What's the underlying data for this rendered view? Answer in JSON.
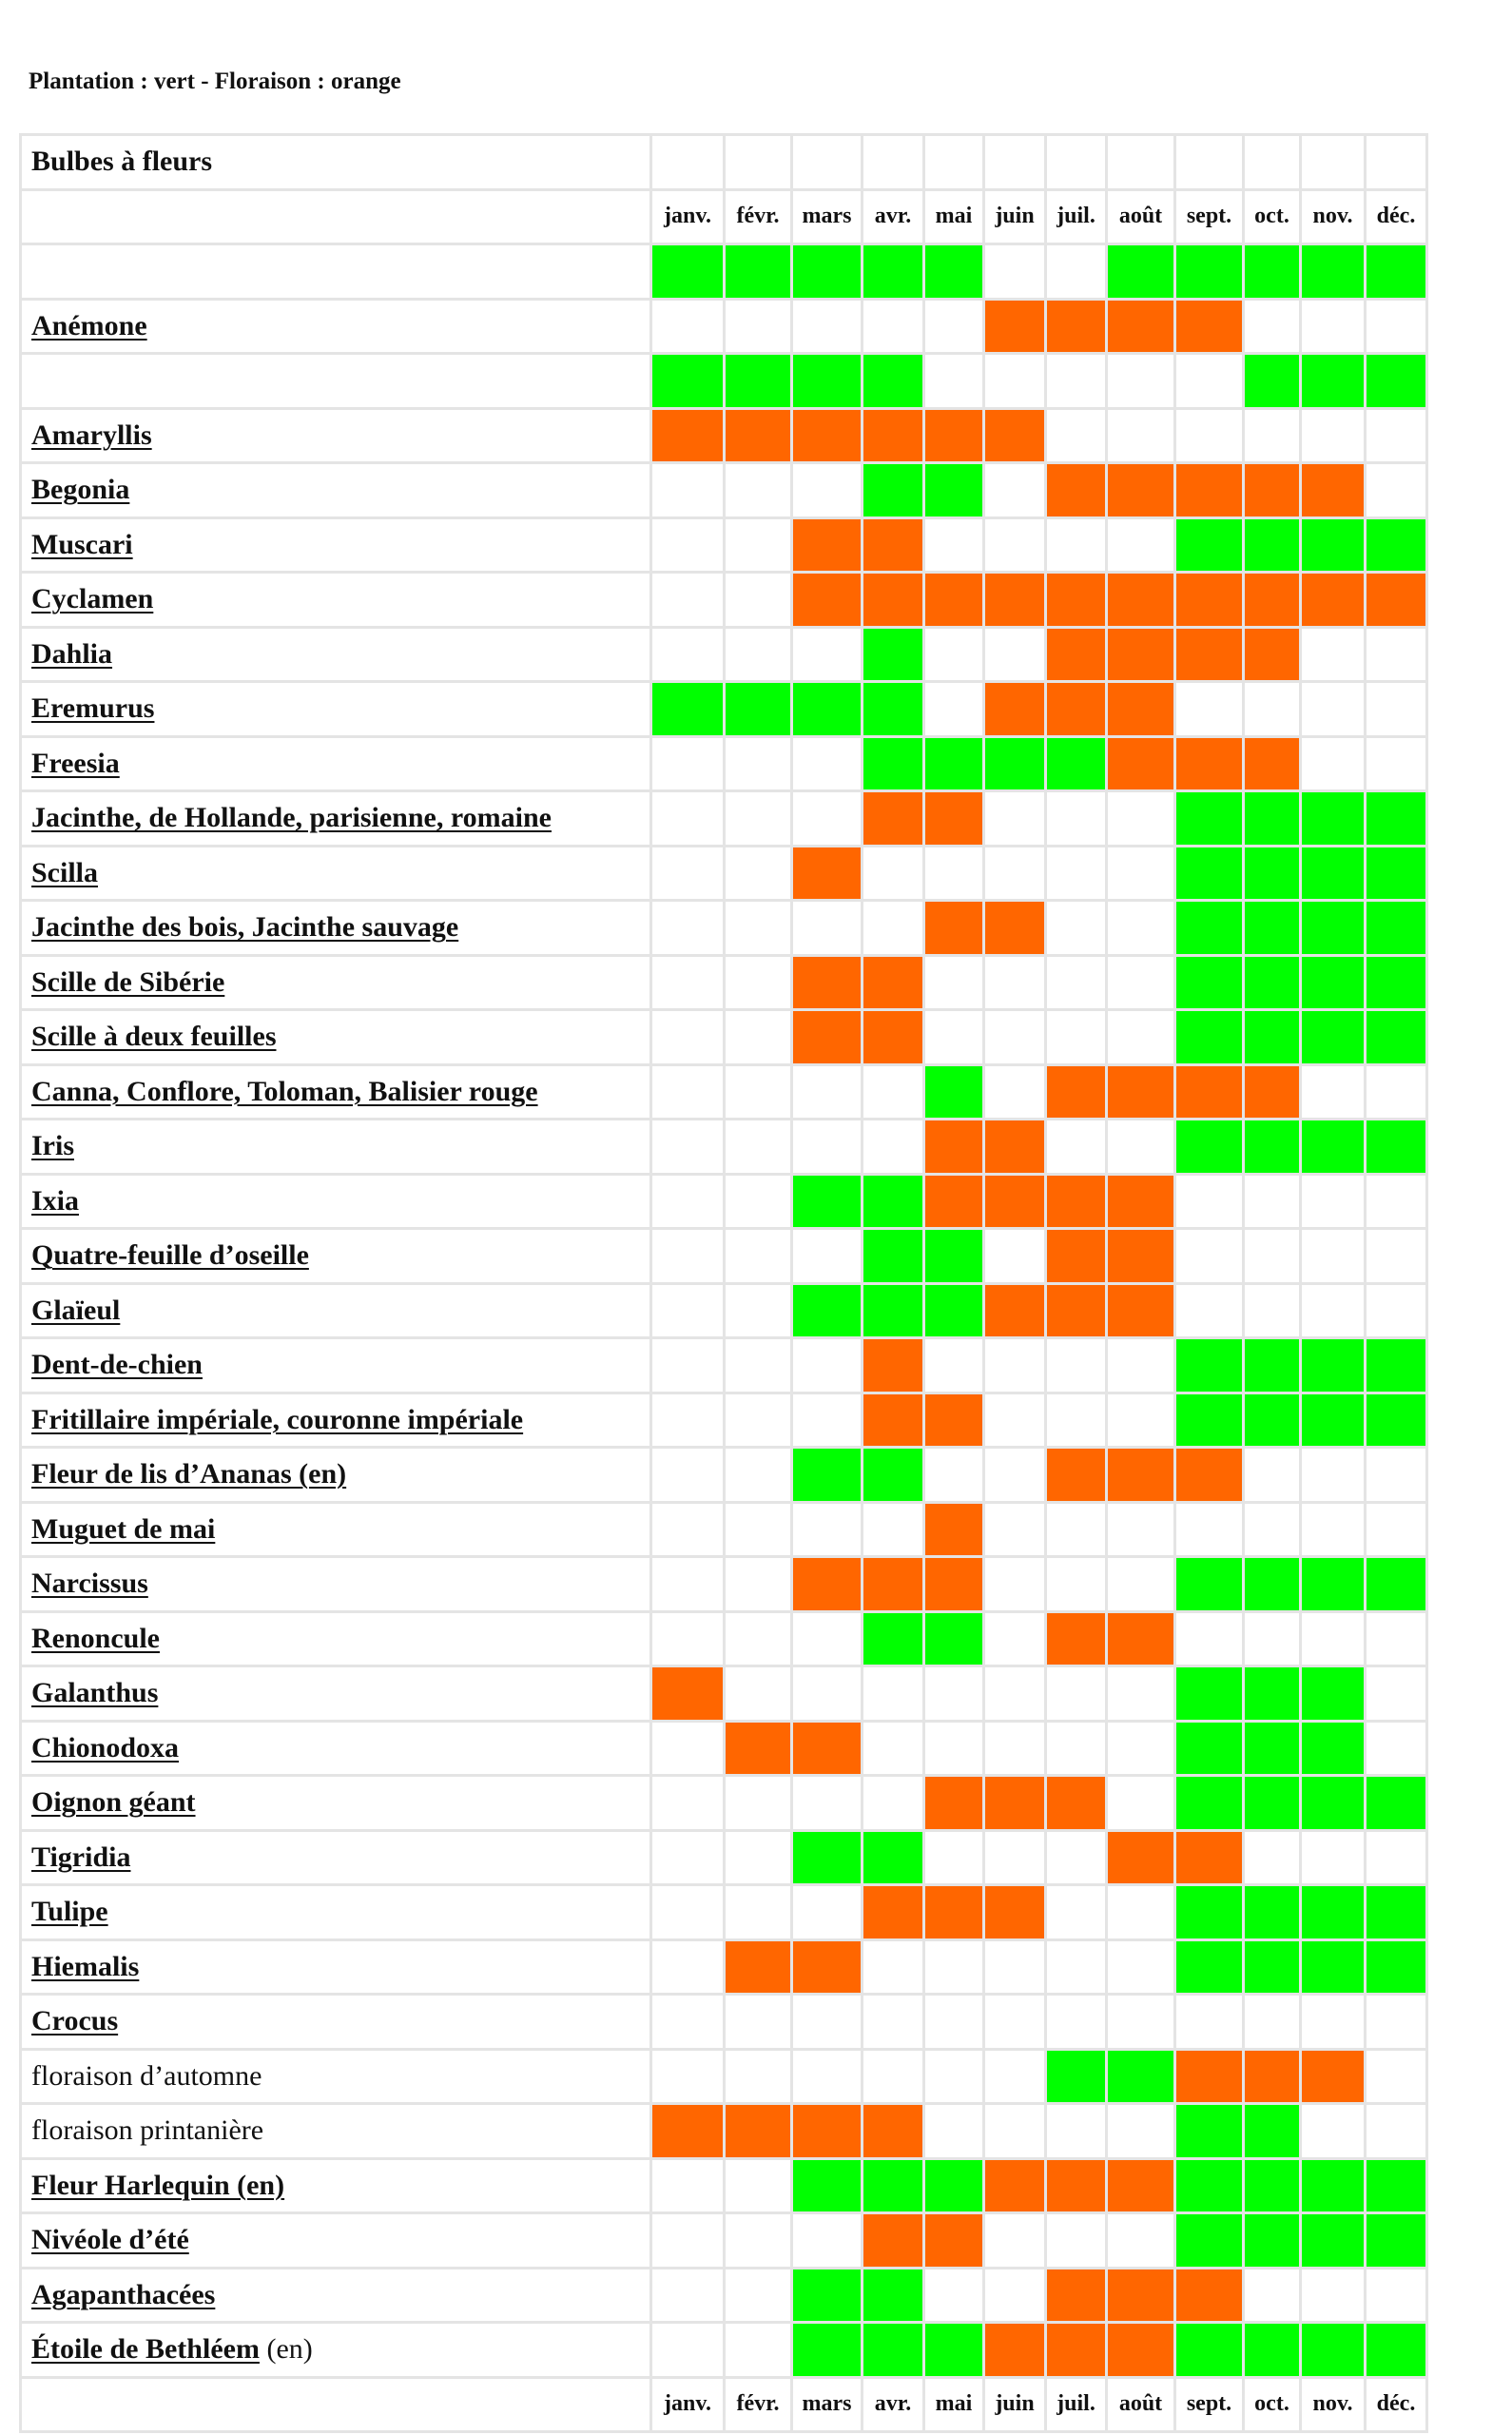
{
  "legend": "Plantation : vert - Floraison : orange",
  "table_title": "Bulbes à fleurs",
  "months": [
    "janv.",
    "févr.",
    "mars",
    "avr.",
    "mai",
    "juin",
    "juil.",
    "août",
    "sept.",
    "oct.",
    "nov.",
    "déc."
  ],
  "legend_colors": {
    "plantation": "#00ff00",
    "floraison": "#ff6600"
  },
  "rows": [
    {
      "name": "",
      "cells": "GGGGG..GGGGG"
    },
    {
      "name": "Anémone",
      "link": true,
      "cells": ".....OOOO..."
    },
    {
      "name": "",
      "cells": "GGGG.....GGG"
    },
    {
      "name": "Amaryllis",
      "link": true,
      "cells": "OOOOOO......"
    },
    {
      "name": "Begonia",
      "link": true,
      "cells": "...GG.OOOOO."
    },
    {
      "name": "Muscari",
      "link": true,
      "cells": "..OO....GGGG"
    },
    {
      "name": "Cyclamen",
      "link": true,
      "cells": "..OOOOOOOOOO"
    },
    {
      "name": "Dahlia",
      "link": true,
      "cells": "...G..OOOO.."
    },
    {
      "name": "Eremurus",
      "link": true,
      "cells": "GGGG.OOO...."
    },
    {
      "name": "Freesia",
      "link": true,
      "cells": "...GGGGOOO.."
    },
    {
      "name": "Jacinthe, de Hollande, parisienne, romaine",
      "link": true,
      "cells": "...OO...GGGG"
    },
    {
      "name": "Scilla",
      "link": true,
      "cells": "..O.....GGGG"
    },
    {
      "name": "Jacinthe des bois, Jacinthe sauvage",
      "link": true,
      "cells": "....OO..GGGG"
    },
    {
      "name": "Scille de Sibérie",
      "link": true,
      "cells": "..OO....GGGG"
    },
    {
      "name": "Scille à deux feuilles",
      "link": true,
      "cells": "..OO....GGGG"
    },
    {
      "name": "Canna, Conflore, Toloman, Balisier rouge",
      "link": true,
      "cells": "....G.OOOO.."
    },
    {
      "name": "Iris",
      "link": true,
      "cells": "....OO..GGGG"
    },
    {
      "name": "Ixia",
      "link": true,
      "cells": "..GGOOOO...."
    },
    {
      "name": "Quatre-feuille d’oseille",
      "link": true,
      "cells": "...GG.OO...."
    },
    {
      "name": "Glaïeul",
      "link": true,
      "cells": "..GGGOOO...."
    },
    {
      "name": "Dent-de-chien",
      "link": true,
      "cells": "...O....GGGG"
    },
    {
      "name": "Fritillaire impériale, couronne impériale",
      "link": true,
      "cells": "...OO...GGGG"
    },
    {
      "name": "Fleur de lis d’Ananas (en)",
      "link": true,
      "cells": "..GG..OOO..."
    },
    {
      "name": "Muguet de mai",
      "link": true,
      "cells": "....O......."
    },
    {
      "name": "Narcissus",
      "link": true,
      "cells": "..OOO...GGGG"
    },
    {
      "name": "Renoncule",
      "link": true,
      "cells": "...GG.OO...."
    },
    {
      "name": "Galanthus",
      "link": true,
      "cells": "O.......GGG."
    },
    {
      "name": "Chionodoxa",
      "link": true,
      "cells": ".OO.....GGG."
    },
    {
      "name": "Oignon géant",
      "link": true,
      "cells": "....OOO.GGGG"
    },
    {
      "name": "Tigridia",
      "link": true,
      "cells": "..GG...OO..."
    },
    {
      "name": "Tulipe",
      "link": true,
      "cells": "...OOO..GGGG"
    },
    {
      "name": "Hiemalis",
      "link": true,
      "cells": ".OO.....GGGG"
    },
    {
      "name": "Crocus",
      "link": true,
      "cells": "............"
    },
    {
      "name": "floraison d’automne",
      "link": false,
      "cells": "......GGOOO."
    },
    {
      "name": "floraison printanière",
      "link": false,
      "cells": "OOOO....GG.."
    },
    {
      "name": "Fleur Harlequin (en)",
      "link": true,
      "cells": "..GGGOOOGGGG"
    },
    {
      "name": "Nivéole d’été",
      "link": true,
      "cells": "...OO...GGGG"
    },
    {
      "name": "Agapanthacées",
      "link": true,
      "cells": "..GG..OOO..."
    },
    {
      "name": "Étoile de Bethléem",
      "link": true,
      "suffix": " (en)",
      "cells": "..GGGOOOGGGG"
    }
  ]
}
